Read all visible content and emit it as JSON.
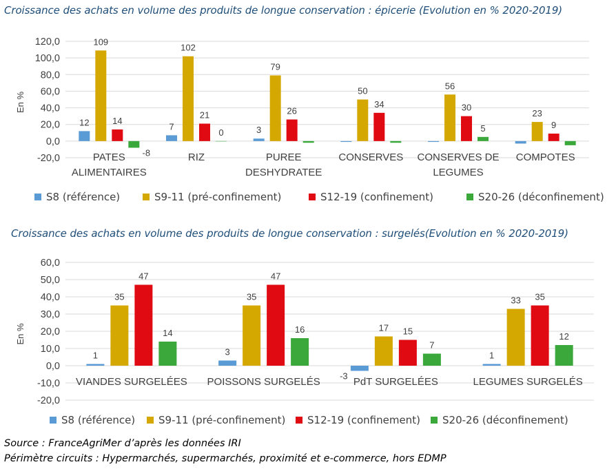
{
  "colors": {
    "S8": "#5b9bd5",
    "S9_11": "#d4a800",
    "S12_19": "#e00b12",
    "S20_26": "#3aa83a",
    "title": "#1f4e79"
  },
  "chart_data": [
    {
      "type": "bar",
      "title": "Croissance des achats en volume des produits de longue conservation : épicerie (Evolution en % 2020-2019)",
      "ylabel": "En %",
      "ylim": [
        -20,
        120
      ],
      "yticks": [
        "120,0",
        "100,0",
        "80,0",
        "60,0",
        "40,0",
        "20,0",
        "0,0",
        "-20,0"
      ],
      "grid": true,
      "legend": "bottom",
      "categories": [
        [
          "PATES",
          "ALIMENTAIRES"
        ],
        [
          "RIZ"
        ],
        [
          "PUREE",
          "DESHYDRATEE"
        ],
        [
          "CONSERVES"
        ],
        [
          "CONSERVES DE",
          "LEGUMES"
        ],
        [
          "COMPOTES"
        ]
      ],
      "series": [
        {
          "name": "S8 (référence)",
          "values": [
            12,
            7,
            3,
            -1,
            -1,
            -3
          ],
          "labels": [
            "12",
            "7",
            "3",
            "",
            "",
            ""
          ]
        },
        {
          "name": "S9-11 (pré-confinement)",
          "values": [
            109,
            102,
            79,
            50,
            56,
            23
          ],
          "labels": [
            "109",
            "102",
            "79",
            "50",
            "56",
            "23"
          ]
        },
        {
          "name": "S12-19 (confinement)",
          "values": [
            14,
            21,
            26,
            34,
            30,
            9
          ],
          "labels": [
            "14",
            "21",
            "26",
            "34",
            "30",
            "9"
          ]
        },
        {
          "name": "S20-26 (déconfinement)",
          "values": [
            -8,
            0,
            -2,
            -2,
            5,
            -5
          ],
          "labels": [
            "-8",
            "0",
            "",
            "",
            "5",
            ""
          ]
        }
      ]
    },
    {
      "type": "bar",
      "title": "Croissance des achats en volume des produits de longue conservation : surgelés(Evolution en % 2020-2019)",
      "ylabel": "En %",
      "ylim": [
        -20,
        60
      ],
      "yticks": [
        "60,0",
        "50,0",
        "40,0",
        "30,0",
        "20,0",
        "10,0",
        "0,0",
        "-10,0",
        "-20,0"
      ],
      "grid": true,
      "legend": "bottom",
      "categories": [
        [
          "VIANDES SURGELÉES"
        ],
        [
          "POISSONS SURGELÉS"
        ],
        [
          "PdT SURGELÉES"
        ],
        [
          "LEGUMES SURGELÉS"
        ]
      ],
      "series": [
        {
          "name": "S8 (référence)",
          "values": [
            1,
            3,
            -3,
            1
          ],
          "labels": [
            "1",
            "3",
            "-3",
            "1"
          ]
        },
        {
          "name": "S9-11 (pré-confinement)",
          "values": [
            35,
            35,
            17,
            33
          ],
          "labels": [
            "35",
            "35",
            "17",
            "33"
          ]
        },
        {
          "name": "S12-19 (confinement)",
          "values": [
            47,
            47,
            15,
            35
          ],
          "labels": [
            "47",
            "47",
            "15",
            "35"
          ]
        },
        {
          "name": "S20-26 (déconfinement)",
          "values": [
            14,
            16,
            7,
            12
          ],
          "labels": [
            "14",
            "16",
            "7",
            "12"
          ]
        }
      ]
    }
  ],
  "footer": {
    "source": "Source : FranceAgriMer d’après les données IRI",
    "perimeter": "Périmètre circuits : Hypermarchés, supermarchés, proximité et e-commerce, hors EDMP"
  }
}
